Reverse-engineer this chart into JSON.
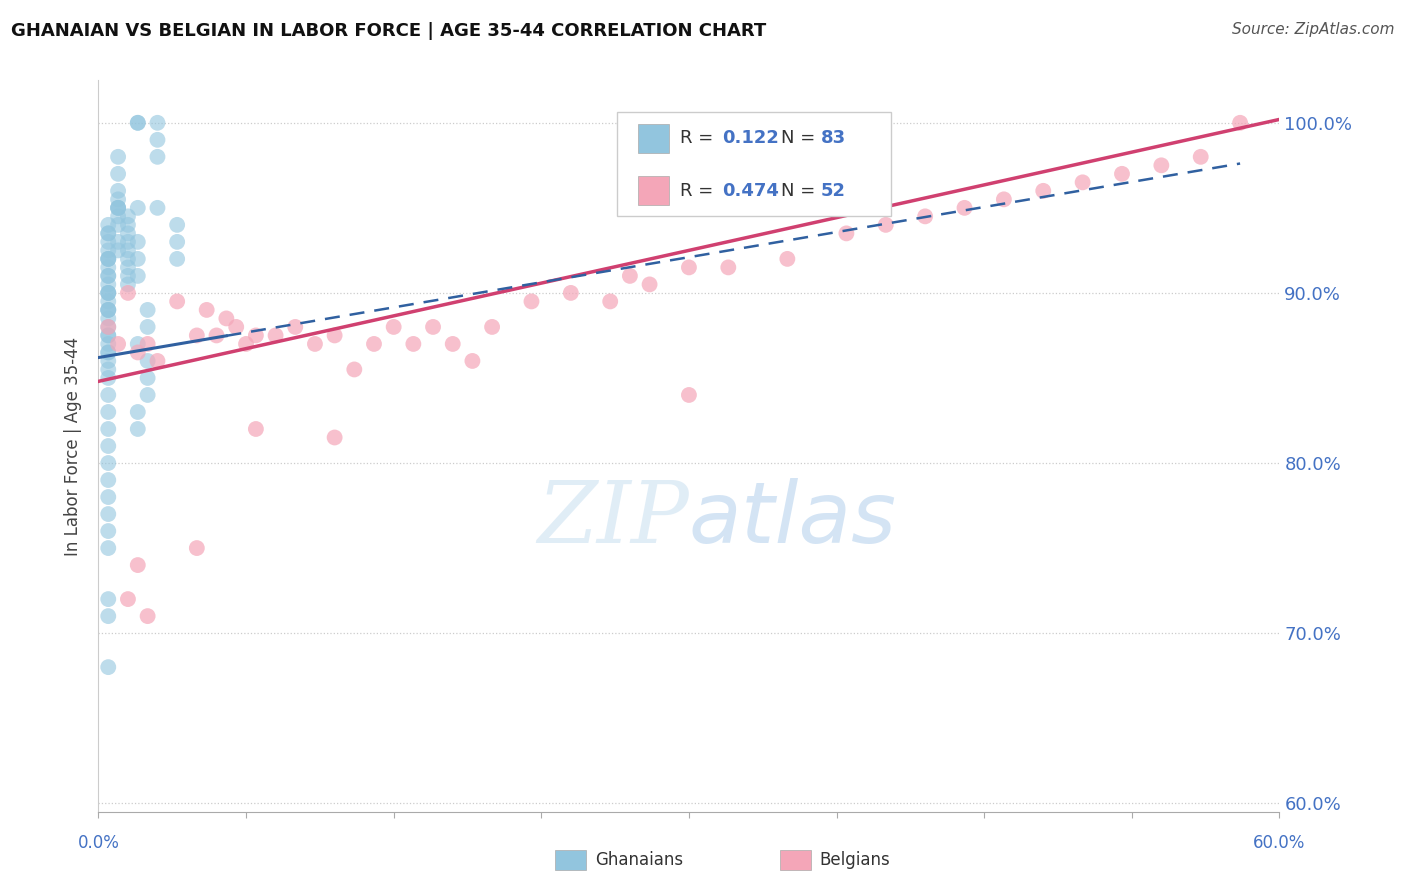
{
  "title": "GHANAIAN VS BELGIAN IN LABOR FORCE | AGE 35-44 CORRELATION CHART",
  "source": "Source: ZipAtlas.com",
  "ylabel": "In Labor Force | Age 35-44",
  "ytick_vals": [
    0.6,
    0.7,
    0.8,
    0.9,
    1.0
  ],
  "xlim": [
    0.0,
    0.6
  ],
  "ylim": [
    0.595,
    1.025
  ],
  "r_ghanaian": 0.122,
  "n_ghanaian": 83,
  "r_belgian": 0.474,
  "n_belgian": 52,
  "blue_color": "#92c5de",
  "pink_color": "#f4a6b8",
  "blue_line_color": "#3060a0",
  "pink_line_color": "#d04070",
  "ghanaian_x": [
    0.02,
    0.02,
    0.03,
    0.03,
    0.03,
    0.01,
    0.01,
    0.01,
    0.01,
    0.01,
    0.01,
    0.01,
    0.005,
    0.005,
    0.005,
    0.005,
    0.005,
    0.005,
    0.005,
    0.005,
    0.005,
    0.005,
    0.005,
    0.005,
    0.005,
    0.005,
    0.005,
    0.005,
    0.005,
    0.005,
    0.005,
    0.005,
    0.005,
    0.005,
    0.005,
    0.005,
    0.005,
    0.005,
    0.005,
    0.005,
    0.02,
    0.02,
    0.02,
    0.02,
    0.025,
    0.025,
    0.03,
    0.04,
    0.04,
    0.04,
    0.015,
    0.015,
    0.015,
    0.015,
    0.015,
    0.015,
    0.015,
    0.015,
    0.015,
    0.01,
    0.01,
    0.01,
    0.01,
    0.005,
    0.02,
    0.025,
    0.025,
    0.025,
    0.02,
    0.02,
    0.005,
    0.005,
    0.005,
    0.005,
    0.005,
    0.005,
    0.005,
    0.005,
    0.005,
    0.005,
    0.005,
    0.005,
    0.005
  ],
  "ghanaian_y": [
    1.0,
    1.0,
    1.0,
    0.99,
    0.98,
    0.98,
    0.97,
    0.96,
    0.955,
    0.95,
    0.95,
    0.945,
    0.94,
    0.935,
    0.935,
    0.93,
    0.925,
    0.92,
    0.92,
    0.92,
    0.915,
    0.91,
    0.91,
    0.905,
    0.9,
    0.9,
    0.9,
    0.895,
    0.89,
    0.89,
    0.885,
    0.88,
    0.875,
    0.875,
    0.87,
    0.865,
    0.865,
    0.86,
    0.855,
    0.85,
    0.95,
    0.93,
    0.92,
    0.91,
    0.89,
    0.88,
    0.95,
    0.94,
    0.93,
    0.92,
    0.945,
    0.94,
    0.935,
    0.93,
    0.925,
    0.92,
    0.915,
    0.91,
    0.905,
    0.95,
    0.94,
    0.93,
    0.925,
    0.89,
    0.87,
    0.86,
    0.85,
    0.84,
    0.83,
    0.82,
    0.84,
    0.83,
    0.82,
    0.81,
    0.8,
    0.79,
    0.78,
    0.77,
    0.76,
    0.75,
    0.72,
    0.71,
    0.68
  ],
  "belgian_x": [
    0.005,
    0.01,
    0.015,
    0.02,
    0.025,
    0.03,
    0.04,
    0.05,
    0.055,
    0.06,
    0.065,
    0.07,
    0.075,
    0.08,
    0.09,
    0.1,
    0.11,
    0.12,
    0.13,
    0.14,
    0.15,
    0.16,
    0.17,
    0.18,
    0.19,
    0.2,
    0.22,
    0.24,
    0.26,
    0.27,
    0.28,
    0.3,
    0.32,
    0.35,
    0.38,
    0.4,
    0.42,
    0.44,
    0.46,
    0.48,
    0.5,
    0.52,
    0.54,
    0.56,
    0.58,
    0.015,
    0.02,
    0.025,
    0.05,
    0.08,
    0.12,
    0.3
  ],
  "belgian_y": [
    0.88,
    0.87,
    0.9,
    0.865,
    0.87,
    0.86,
    0.895,
    0.875,
    0.89,
    0.875,
    0.885,
    0.88,
    0.87,
    0.875,
    0.875,
    0.88,
    0.87,
    0.875,
    0.855,
    0.87,
    0.88,
    0.87,
    0.88,
    0.87,
    0.86,
    0.88,
    0.895,
    0.9,
    0.895,
    0.91,
    0.905,
    0.915,
    0.915,
    0.92,
    0.935,
    0.94,
    0.945,
    0.95,
    0.955,
    0.96,
    0.965,
    0.97,
    0.975,
    0.98,
    1.0,
    0.72,
    0.74,
    0.71,
    0.75,
    0.82,
    0.815,
    0.84
  ]
}
